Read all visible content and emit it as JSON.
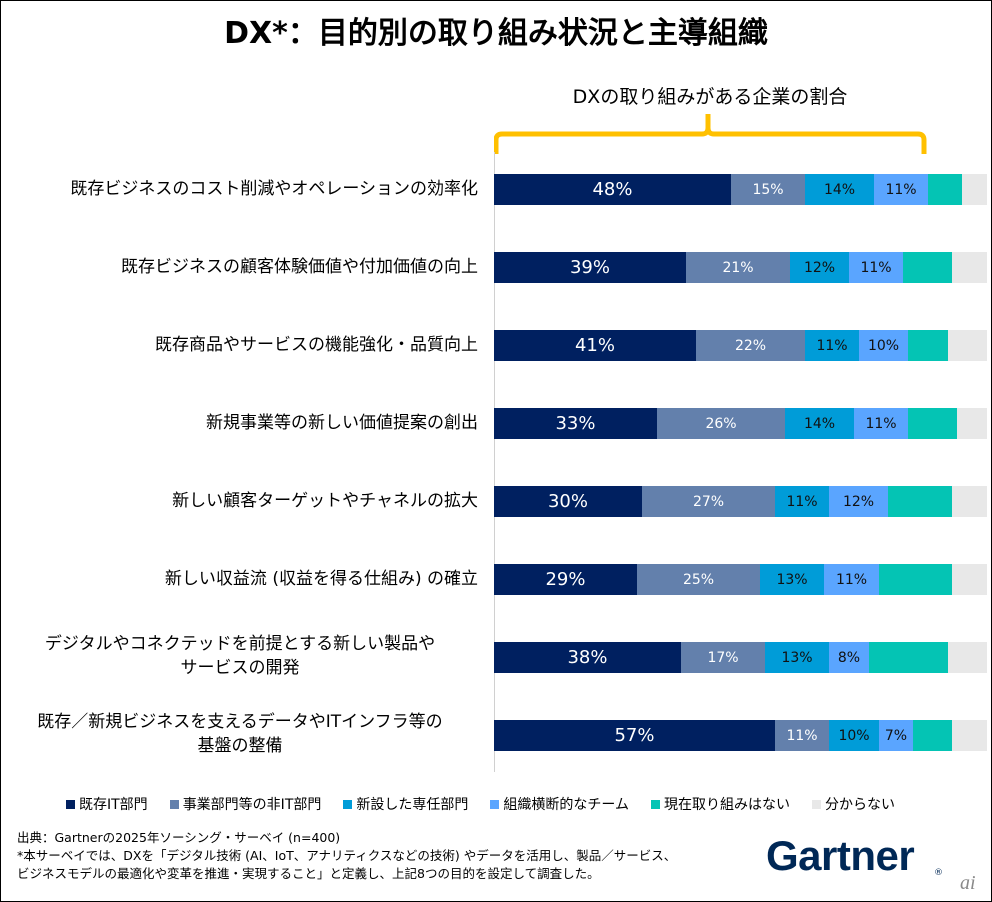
{
  "title": "DX*：目的別の取り組み状況と主導組織",
  "chart_data": {
    "type": "bar",
    "orientation": "horizontal",
    "stacked": true,
    "title": "DX*：目的別の取り組み状況と主導組織",
    "subtitle": "DXの取り組みがある企業の割合",
    "xlabel": "",
    "ylabel": "",
    "xlim": [
      0,
      100
    ],
    "unit": "%",
    "grid": false,
    "legend_position": "bottom",
    "categories": [
      "既存ビジネスのコスト削減やオペレーションの効率化",
      "既存ビジネスの顧客体験価値や付加価値の向上",
      "既存商品やサービスの機能強化・品質向上",
      "新規事業等の新しい価値提案の創出",
      "新しい顧客ターゲットやチャネルの拡大",
      "新しい収益流 (収益を得る仕組み) の確立",
      "デジタルやコネクテッドを前提とする新しい製品やサービスの開発",
      "既存／新規ビジネスを支えるデータやITインフラ等の基盤の整備"
    ],
    "category_lines": [
      [
        "既存ビジネスのコスト削減やオペレーションの効率化"
      ],
      [
        "既存ビジネスの顧客体験価値や付加価値の向上"
      ],
      [
        "既存商品やサービスの機能強化・品質向上"
      ],
      [
        "新規事業等の新しい価値提案の創出"
      ],
      [
        "新しい顧客ターゲットやチャネルの拡大"
      ],
      [
        "新しい収益流 (収益を得る仕組み) の確立"
      ],
      [
        "デジタルやコネクテッドを前提とする新しい製品や",
        "サービスの開発"
      ],
      [
        "既存／新規ビジネスを支えるデータやITインフラ等の",
        "基盤の整備"
      ]
    ],
    "series": [
      {
        "name": "既存IT部門",
        "color": "#002060",
        "label_color": "#ffffff",
        "show_labels": true,
        "values": [
          48,
          39,
          41,
          33,
          30,
          29,
          38,
          57
        ]
      },
      {
        "name": "事業部門等の非IT部門",
        "color": "#6380AC",
        "label_color": "#ffffff",
        "show_labels": true,
        "values": [
          15,
          21,
          22,
          26,
          27,
          25,
          17,
          11
        ]
      },
      {
        "name": "新設した専任部門",
        "color": "#009CD8",
        "label_color": "#111111",
        "show_labels": true,
        "values": [
          14,
          12,
          11,
          14,
          11,
          13,
          13,
          10
        ]
      },
      {
        "name": "組織横断的なチーム",
        "color": "#5AA5FF",
        "label_color": "#111111",
        "show_labels": true,
        "values": [
          11,
          11,
          10,
          11,
          12,
          11,
          8,
          7
        ]
      },
      {
        "name": "現在取り組みはない",
        "color": "#04C4B4",
        "label_color": "#111111",
        "show_labels": false,
        "values": [
          7,
          10,
          8,
          10,
          13,
          15,
          16,
          8
        ]
      },
      {
        "name": "分からない",
        "color": "#E8E8E8",
        "label_color": "#111111",
        "show_labels": false,
        "values": [
          5,
          7,
          8,
          6,
          7,
          7,
          8,
          7
        ]
      }
    ],
    "bracket_color": "#FFC000"
  },
  "notes": {
    "source": "出典：Gartnerの2025年ソーシング・サーベイ (n=400)",
    "definition_line1": "*本サーベイでは、DXを「デジタル技術 (AI、IoT、アナリティクスなどの技術) やデータを活用し、製品／サービス、",
    "definition_line2": "ビジネスモデルの最適化や変革を推進・実現すること」と定義し、上記8つの目的を設定して調査した。"
  },
  "logo": {
    "text": "Gartner",
    "registered": "®"
  },
  "watermark": "ai"
}
